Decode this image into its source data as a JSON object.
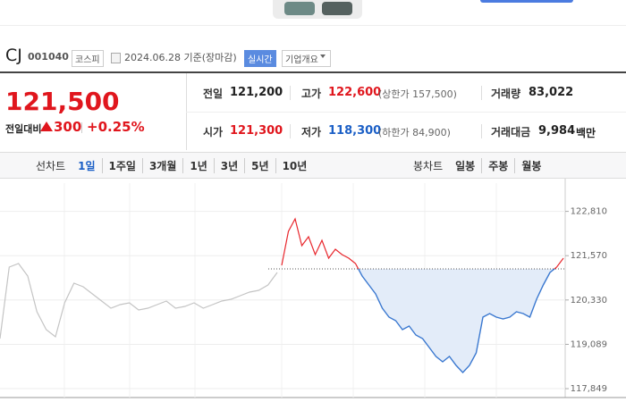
{
  "header": {
    "name": "CJ",
    "code": "001040",
    "market": "코스피",
    "date": "2024.06.28 기준(장마감)",
    "realtime": "실시간",
    "company_info": "기업개요"
  },
  "quote": {
    "price": "121,500",
    "change_label": "전일대비",
    "change": "300",
    "change_rate": "+0.25%"
  },
  "stats": [
    {
      "label": "전일",
      "value": "121,200"
    },
    {
      "label": "고가",
      "value": "122,600",
      "note": "(상한가 157,500)"
    },
    {
      "label": "거래량",
      "value": "83,022"
    },
    {
      "label": "시가",
      "value": "121,300"
    },
    {
      "label": "저가",
      "value": "118,300",
      "note": "(하한가 84,900)"
    },
    {
      "label": "거래대금",
      "value": "9,984",
      "unit": "백만"
    }
  ],
  "tabs": {
    "line_label": "선차트",
    "line": [
      "1일",
      "1주일",
      "3개월",
      "1년",
      "3년",
      "5년",
      "10년"
    ],
    "selected": "1일",
    "candle_label": "봉차트",
    "candle": [
      "일봉",
      "주봉",
      "월봉"
    ]
  },
  "chart_data": {
    "type": "line",
    "ylim": [
      117600,
      123600
    ],
    "yticks": [
      {
        "value": 122810,
        "label": "122,810"
      },
      {
        "value": 121570,
        "label": "121,570"
      },
      {
        "value": 120330,
        "label": "120,330"
      },
      {
        "value": 119089,
        "label": "119,089"
      },
      {
        "value": 117849,
        "label": "117,849"
      }
    ],
    "baseline": 121200,
    "up_color": "#e8262c",
    "down_color": "#3a78d0",
    "area_color": "#e3ecf9",
    "prev_color": "#c4c4c4",
    "series": [
      {
        "color": "#c4c4c4",
        "values": [
          119250,
          121250,
          121350,
          121000,
          120000,
          119500,
          119300,
          120250,
          120800,
          120700,
          120500,
          120300,
          120100,
          120200,
          120250,
          120050,
          120100,
          120200,
          120300,
          120100,
          120150,
          120250,
          120100,
          120200,
          120300,
          120350,
          120450,
          120550,
          120600,
          120750,
          121100
        ]
      },
      {
        "color": "#3a78d0",
        "values": [
          121300,
          122250,
          122600,
          121850,
          122100,
          121600,
          122000,
          121500,
          121750,
          121600,
          121500,
          121350,
          121000,
          120750,
          120500,
          120100,
          119850,
          119750,
          119500,
          119600,
          119350,
          119250,
          119000,
          118750,
          118600,
          118750,
          118500,
          118300,
          118500,
          118850,
          119850,
          119950,
          119850,
          119800,
          119850,
          120000,
          119950,
          119850,
          120350,
          120750,
          121100,
          121250,
          121500
        ]
      }
    ]
  }
}
